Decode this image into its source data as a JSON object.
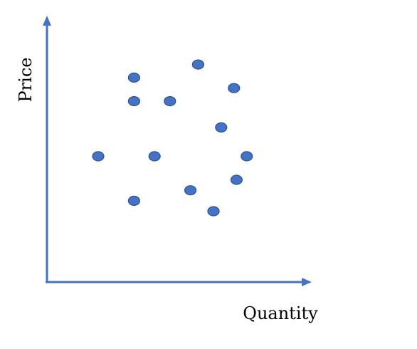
{
  "chart_data": {
    "type": "scatter",
    "xlabel": "Quantity",
    "ylabel": "Price",
    "xlim": [
      0,
      10
    ],
    "ylim": [
      0,
      10
    ],
    "grid": false,
    "axis_color": "#4472C4",
    "series": [
      {
        "color": "#4472C4",
        "edge_color": "#2F528F",
        "points": [
          {
            "x": 3.4,
            "y": 7.8
          },
          {
            "x": 5.9,
            "y": 8.3
          },
          {
            "x": 7.3,
            "y": 7.4
          },
          {
            "x": 3.4,
            "y": 6.9
          },
          {
            "x": 4.8,
            "y": 6.9
          },
          {
            "x": 6.8,
            "y": 5.9
          },
          {
            "x": 2.0,
            "y": 4.8
          },
          {
            "x": 4.2,
            "y": 4.8
          },
          {
            "x": 7.8,
            "y": 4.8
          },
          {
            "x": 7.4,
            "y": 3.9
          },
          {
            "x": 5.6,
            "y": 3.5
          },
          {
            "x": 3.4,
            "y": 3.1
          },
          {
            "x": 6.5,
            "y": 2.7
          }
        ]
      }
    ]
  }
}
